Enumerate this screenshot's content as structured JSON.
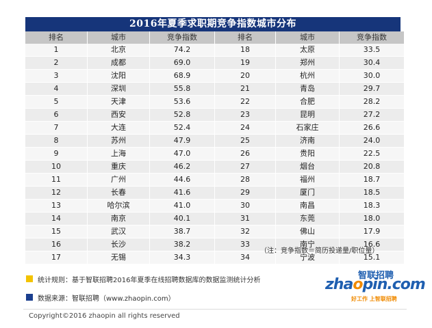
{
  "title": "2016年夏季求职期竞争指数城市分布",
  "headers": [
    "排名",
    "城市",
    "竞争指数",
    "排名",
    "城市",
    "竞争指数"
  ],
  "rows": [
    {
      "rank_a": "1",
      "city_a": "北京",
      "index_a": "74.2",
      "rank_b": "18",
      "city_b": "太原",
      "index_b": "33.5"
    },
    {
      "rank_a": "2",
      "city_a": "成都",
      "index_a": "69.0",
      "rank_b": "19",
      "city_b": "郑州",
      "index_b": "30.4"
    },
    {
      "rank_a": "3",
      "city_a": "沈阳",
      "index_a": "68.9",
      "rank_b": "20",
      "city_b": "杭州",
      "index_b": "30.0"
    },
    {
      "rank_a": "4",
      "city_a": "深圳",
      "index_a": "55.8",
      "rank_b": "21",
      "city_b": "青岛",
      "index_b": "29.7"
    },
    {
      "rank_a": "5",
      "city_a": "天津",
      "index_a": "53.6",
      "rank_b": "22",
      "city_b": "合肥",
      "index_b": "28.2"
    },
    {
      "rank_a": "6",
      "city_a": "西安",
      "index_a": "52.8",
      "rank_b": "23",
      "city_b": "昆明",
      "index_b": "27.2"
    },
    {
      "rank_a": "7",
      "city_a": "大连",
      "index_a": "52.4",
      "rank_b": "24",
      "city_b": "石家庄",
      "index_b": "26.6"
    },
    {
      "rank_a": "8",
      "city_a": "苏州",
      "index_a": "47.9",
      "rank_b": "25",
      "city_b": "济南",
      "index_b": "24.0"
    },
    {
      "rank_a": "9",
      "city_a": "上海",
      "index_a": "47.0",
      "rank_b": "26",
      "city_b": "贵阳",
      "index_b": "22.5"
    },
    {
      "rank_a": "10",
      "city_a": "重庆",
      "index_a": "46.2",
      "rank_b": "27",
      "city_b": "烟台",
      "index_b": "20.8"
    },
    {
      "rank_a": "11",
      "city_a": "广州",
      "index_a": "44.6",
      "rank_b": "28",
      "city_b": "福州",
      "index_b": "18.7"
    },
    {
      "rank_a": "12",
      "city_a": "长春",
      "index_a": "41.6",
      "rank_b": "29",
      "city_b": "厦门",
      "index_b": "18.5"
    },
    {
      "rank_a": "13",
      "city_a": "哈尔滨",
      "index_a": "41.0",
      "rank_b": "30",
      "city_b": "南昌",
      "index_b": "18.3"
    },
    {
      "rank_a": "14",
      "city_a": "南京",
      "index_a": "40.1",
      "rank_b": "31",
      "city_b": "东莞",
      "index_b": "18.0"
    },
    {
      "rank_a": "15",
      "city_a": "武汉",
      "index_a": "38.7",
      "rank_b": "32",
      "city_b": "佛山",
      "index_b": "17.9"
    },
    {
      "rank_a": "16",
      "city_a": "长沙",
      "index_a": "38.2",
      "rank_b": "33",
      "city_b": "南宁",
      "index_b": "16.6"
    },
    {
      "rank_a": "17",
      "city_a": "无锡",
      "index_a": "34.3",
      "rank_b": "34",
      "city_b": "宁波",
      "index_b": "15.1"
    }
  ],
  "note": "（注：竞争指数＝简历投递量/职位量）",
  "method": "统计规则：基于智联招聘2016年夏季在线招聘数据库的数据监测统计分析",
  "source": "数据来源：智联招聘（www.zhaopin.com）",
  "logo": {
    "cn_name": "智联招聘",
    "en_name_a": "zha",
    "en_name_o": "o",
    "en_name_b": "pin.com",
    "slogan": "好工作  上智联招聘"
  },
  "footer": "Copyright©2016 zhaopin all rights reserved",
  "colors": {
    "title_bg": "#16357a",
    "header_bg": "#c6c6c6",
    "bullet_method": "#f3c300",
    "bullet_source": "#1b3f8f",
    "logo_blue": "#1f5fb0",
    "logo_orange": "#f08a00"
  }
}
